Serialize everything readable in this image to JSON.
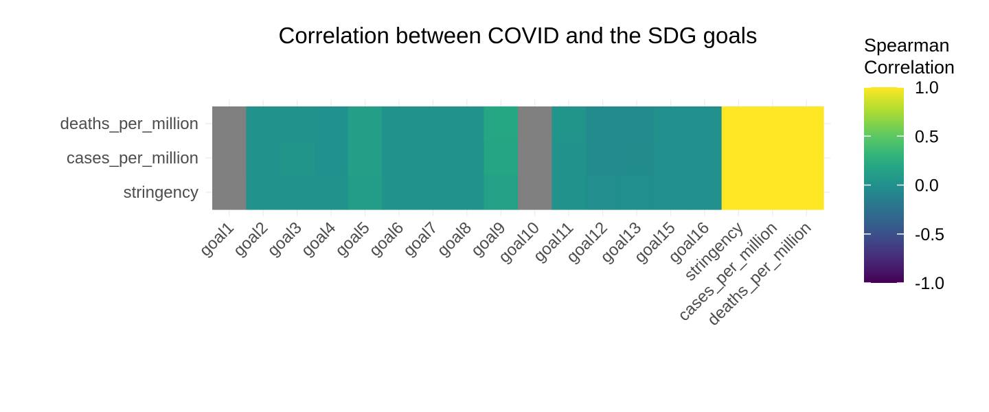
{
  "chart_data": {
    "type": "heatmap",
    "title": "Correlation between COVID and the SDG goals",
    "x_categories": [
      "goal1",
      "goal2",
      "goal3",
      "goal4",
      "goal5",
      "goal6",
      "goal7",
      "goal8",
      "goal9",
      "goal10",
      "goal11",
      "goal12",
      "goal13",
      "goal15",
      "goal16",
      "stringency",
      "cases_per_million",
      "deaths_per_million"
    ],
    "y_categories": [
      "deaths_per_million",
      "cases_per_million",
      "stringency"
    ],
    "values": [
      [
        null,
        0.02,
        0.03,
        0.01,
        0.12,
        0.02,
        0.03,
        0.03,
        0.2,
        null,
        0.04,
        -0.05,
        -0.04,
        0.0,
        0.0,
        1.0,
        1.0,
        1.0
      ],
      [
        null,
        0.02,
        0.04,
        0.01,
        0.12,
        0.02,
        0.03,
        0.03,
        0.18,
        null,
        0.03,
        -0.04,
        -0.03,
        0.0,
        0.0,
        1.0,
        1.0,
        1.0
      ],
      [
        null,
        0.03,
        0.03,
        0.02,
        0.11,
        0.03,
        0.03,
        0.03,
        0.14,
        null,
        0.02,
        -0.02,
        -0.01,
        0.0,
        0.0,
        1.0,
        1.0,
        1.0
      ]
    ],
    "missing_color": "#808080",
    "colorscale": "viridis",
    "legend": {
      "title_lines": [
        "Spearman",
        "Correlation"
      ],
      "ticks": [
        "1.0",
        "0.5",
        "0.0",
        "-0.5",
        "-1.0"
      ],
      "range": [
        -1.0,
        1.0
      ],
      "placement": "right"
    },
    "grid": true
  }
}
